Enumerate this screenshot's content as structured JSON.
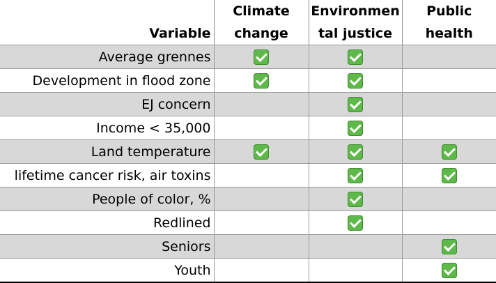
{
  "header": {
    "variable": "Variable",
    "climate": [
      "Climate",
      "change"
    ],
    "environmental": [
      "Environmen",
      "tal justice"
    ],
    "public": [
      "Public",
      "health"
    ]
  },
  "rows": [
    {
      "label": "Average grennes",
      "climate": true,
      "env": true,
      "health": false
    },
    {
      "label": "Development in flood zone",
      "climate": true,
      "env": true,
      "health": false
    },
    {
      "label": "EJ concern",
      "climate": false,
      "env": true,
      "health": false
    },
    {
      "label": "Income < 35,000",
      "climate": false,
      "env": true,
      "health": false
    },
    {
      "label": "Land temperature",
      "climate": true,
      "env": true,
      "health": true
    },
    {
      "label": "lifetime cancer risk, air toxins",
      "climate": false,
      "env": true,
      "health": true
    },
    {
      "label": "People of color, %",
      "climate": false,
      "env": true,
      "health": false
    },
    {
      "label": "Redlined",
      "climate": false,
      "env": true,
      "health": false
    },
    {
      "label": "Seniors",
      "climate": false,
      "env": false,
      "health": true
    },
    {
      "label": "Youth",
      "climate": false,
      "env": false,
      "health": true
    }
  ],
  "colors": {
    "checkmark": "#5fb84a",
    "shaded_row": "#d8d8d8"
  },
  "icons": {
    "check": "check-mark-button-icon"
  }
}
